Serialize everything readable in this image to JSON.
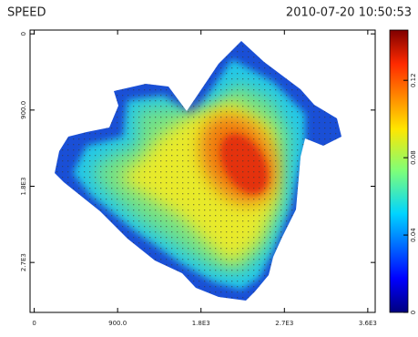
{
  "chart_data": {
    "type": "heatmap",
    "title": "SPEED",
    "subtitle": "2010-07-20 10:50:53",
    "xlim": [
      -45,
      3680
    ],
    "xticks": [
      0,
      {
        "value": 900,
        "label": "900.0"
      },
      {
        "value": 1800,
        "label": "1.8E3"
      },
      {
        "value": 2700,
        "label": "2.7E3"
      },
      {
        "value": 3600,
        "label": "3.6E3"
      }
    ],
    "ylim": [
      -45,
      3290
    ],
    "y_inverted": true,
    "yticks": [
      0,
      {
        "value": 900,
        "label": "900.0"
      },
      {
        "value": 1800,
        "label": "1.8E3"
      },
      {
        "value": 2700,
        "label": "2.7E3"
      }
    ],
    "colormap": "jet",
    "clim": [
      0,
      0.146
    ],
    "cticks": [
      0,
      0.04,
      0.08,
      0.12
    ]
  }
}
